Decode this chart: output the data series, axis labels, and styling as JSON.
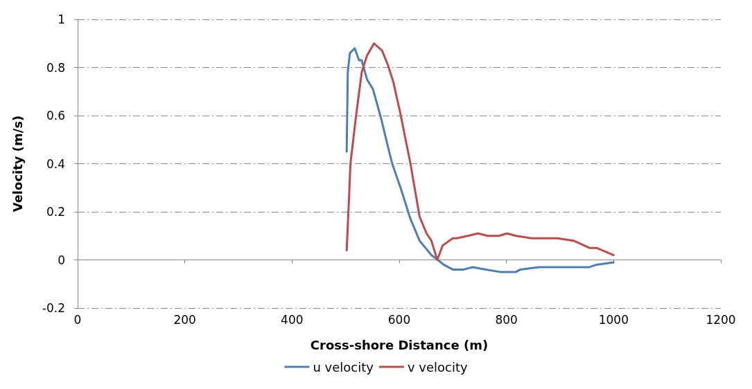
{
  "chart_data": {
    "type": "line",
    "xlabel": "Cross-shore Distance (m)",
    "ylabel": "Velocity (m/s)",
    "xlim": [
      0,
      1200
    ],
    "xticks": [
      0,
      200,
      400,
      600,
      800,
      1000,
      1200
    ],
    "ylim": [
      -0.2,
      1
    ],
    "yticks": [
      -0.2,
      0,
      0.2,
      0.4,
      0.6,
      0.8,
      1
    ],
    "grid": "y",
    "legend": "bottom",
    "marker": "none",
    "line_style": "solid",
    "series": [
      {
        "name": "u velocity",
        "color": "#4a7ebb",
        "x": [
          502,
          504,
          508,
          517,
          525,
          530,
          540,
          551,
          566,
          579,
          587,
          604,
          621,
          638,
          649,
          660,
          672,
          683,
          700,
          720,
          737,
          762,
          788,
          818,
          826,
          861,
          895,
          921,
          955,
          968,
          1000
        ],
        "values": [
          0.45,
          0.78,
          0.86,
          0.88,
          0.83,
          0.83,
          0.75,
          0.71,
          0.59,
          0.47,
          0.4,
          0.29,
          0.17,
          0.08,
          0.05,
          0.02,
          0,
          -0.02,
          -0.04,
          -0.04,
          -0.03,
          -0.04,
          -0.05,
          -0.05,
          -0.04,
          -0.03,
          -0.03,
          -0.03,
          -0.03,
          -0.02,
          -0.01
        ]
      },
      {
        "name": "v velocity",
        "color": "#be4b48",
        "x": [
          502,
          506,
          509,
          519,
          530,
          540,
          553,
          568,
          579,
          589,
          602,
          621,
          638,
          651,
          660,
          671,
          681,
          700,
          707,
          728,
          747,
          765,
          786,
          801,
          818,
          847,
          878,
          895,
          925,
          955,
          968,
          1000
        ],
        "values": [
          0.04,
          0.24,
          0.4,
          0.59,
          0.78,
          0.85,
          0.9,
          0.87,
          0.81,
          0.74,
          0.61,
          0.4,
          0.18,
          0.11,
          0.08,
          0,
          0.06,
          0.09,
          0.09,
          0.1,
          0.11,
          0.1,
          0.1,
          0.11,
          0.1,
          0.09,
          0.09,
          0.09,
          0.08,
          0.05,
          0.05,
          0.02
        ]
      }
    ]
  }
}
